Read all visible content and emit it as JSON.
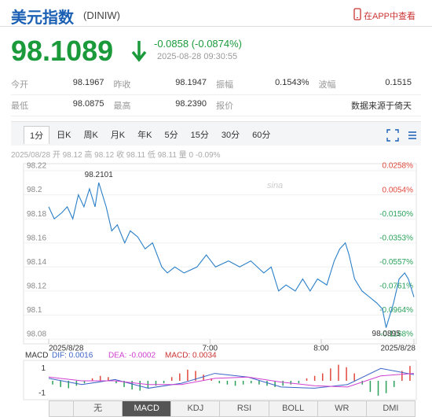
{
  "header": {
    "title": "美元指数",
    "code": "(DINIW)",
    "app_link": "在APP中查看"
  },
  "quote": {
    "price": "98.1089",
    "change": "-0.0858 (-0.0874%)",
    "time": "2025-08-28 09:30:55"
  },
  "stats": [
    [
      {
        "label": "今开",
        "value": "98.1967"
      },
      {
        "label": "昨收",
        "value": "98.1947"
      },
      {
        "label": "振幅",
        "value": "0.1543%"
      },
      {
        "label": "波幅",
        "value": "0.1515"
      }
    ],
    [
      {
        "label": "最低",
        "value": "98.0875"
      },
      {
        "label": "最高",
        "value": "98.2390"
      },
      {
        "label": "报价",
        "value": "数据来源于倚天"
      }
    ]
  ],
  "tabs": [
    "1分",
    "日K",
    "周K",
    "月K",
    "年K",
    "5分",
    "15分",
    "30分",
    "60分"
  ],
  "info_line": "2025/08/28 开 98.12 高 98.12 收 98.11 低 98.11 量 0 -0.09%",
  "chart_data": [
    {
      "type": "line",
      "x": [
        333,
        336,
        340,
        343,
        346,
        349,
        352,
        355,
        358,
        360,
        364,
        367,
        370,
        374,
        377,
        381,
        385,
        389,
        394,
        397,
        401,
        406,
        413,
        418,
        423,
        430,
        436,
        442,
        449,
        453,
        457,
        461,
        466,
        470,
        474,
        478,
        483,
        487,
        490,
        493,
        495,
        498,
        502,
        506,
        510,
        513,
        515,
        519,
        522,
        525,
        527,
        530
      ],
      "series": [
        {
          "color": "#2a7fc8",
          "values": [
            98.19,
            98.18,
            98.185,
            98.19,
            98.18,
            98.2,
            98.19,
            98.205,
            98.19,
            98.2101,
            98.19,
            98.17,
            98.175,
            98.16,
            98.17,
            98.165,
            98.155,
            98.16,
            98.14,
            98.135,
            98.14,
            98.135,
            98.14,
            98.15,
            98.14,
            98.145,
            98.14,
            98.145,
            98.135,
            98.14,
            98.12,
            98.125,
            98.12,
            98.13,
            98.12,
            98.13,
            98.125,
            98.145,
            98.155,
            98.16,
            98.15,
            98.13,
            98.12,
            98.115,
            98.11,
            98.105,
            98.0895,
            98.11,
            98.13,
            98.135,
            98.13,
            98.115
          ]
        }
      ],
      "annotations": [
        "98.2101",
        "98.0895"
      ],
      "xlim": [
        333,
        530
      ],
      "xticks": [
        {
          "value": 333,
          "label": "2025/8/28"
        },
        {
          "value": 420,
          "label": "7:00"
        },
        {
          "value": 480,
          "label": "8:00"
        },
        {
          "value": 530,
          "label": "2025/8/28"
        }
      ],
      "ylim": [
        98.08,
        98.22
      ],
      "yticks": [
        98.08,
        98.1,
        98.12,
        98.14,
        98.16,
        98.18,
        98.2,
        98.22
      ],
      "y2lim": [
        -0.1168,
        0.0258
      ],
      "y2ticks": [
        {
          "value": 0.0258,
          "label": "0.0258%"
        },
        {
          "value": 0.0054,
          "label": "0.0054%"
        },
        {
          "value": -0.015,
          "label": "-0.0150%"
        },
        {
          "value": -0.0353,
          "label": "-0.0353%"
        },
        {
          "value": -0.0557,
          "label": "-0.0557%"
        },
        {
          "value": -0.0761,
          "label": "-0.0761%"
        },
        {
          "value": -0.0964,
          "label": "-0.0964%"
        },
        {
          "value": -0.1168,
          "label": "-0.1168%"
        }
      ],
      "up_color": "#e0483c",
      "down_color": "#2aa05a",
      "grid": true
    },
    {
      "type": "bar",
      "title": "MACD",
      "legend": [
        "DIF: 0.0016",
        "DEA: -0.0002",
        "MACD: 0.0034"
      ],
      "values": [
        -0.3,
        -0.5,
        -0.6,
        -0.4,
        -0.2,
        0.2,
        0.4,
        0.3,
        -0.2,
        -0.5,
        -0.7,
        -0.8,
        -0.6,
        -0.4,
        -0.2,
        0.3,
        0.6,
        0.9,
        0.8,
        0.5,
        0.2,
        -0.2,
        -0.3,
        -0.4,
        -0.3,
        -0.2,
        -0.3,
        -0.4,
        -0.5,
        -0.4,
        -0.3,
        -0.2,
        0.2,
        0.4,
        0.6,
        1.0,
        1.3,
        1.1,
        0.6,
        -0.3,
        -0.9,
        -1.2,
        -1.0,
        -0.5,
        0.8,
        1.2
      ],
      "series": [
        {
          "name": "DIF",
          "color": "#3a62c8",
          "values": [
            0.2,
            -0.3,
            0.1,
            -0.6,
            -0.2,
            0.6,
            0.3,
            -0.5,
            -0.6,
            -0.3,
            1.0,
            0.5
          ]
        },
        {
          "name": "DEA",
          "color": "#d040d0",
          "values": [
            0.3,
            0,
            0,
            -0.3,
            -0.3,
            0.2,
            0.3,
            -0.1,
            -0.4,
            -0.5,
            0.4,
            0.6
          ]
        }
      ],
      "ylim": [
        -1.4,
        1.4
      ],
      "yticks": [
        1,
        -1
      ],
      "up_color": "#e0483c",
      "down_color": "#2aa05a"
    }
  ],
  "indicator_tabs": [
    "无",
    "MACD",
    "KDJ",
    "RSI",
    "BOLL",
    "WR",
    "DMI"
  ]
}
